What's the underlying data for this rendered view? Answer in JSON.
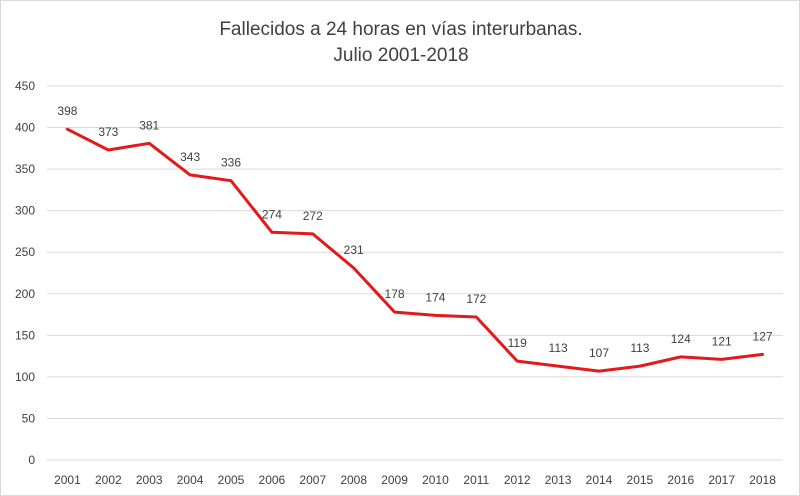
{
  "chart_data": {
    "type": "line",
    "title_lines": [
      "Fallecidos a 24 horas en vías interurbanas.",
      "Julio 2001-2018"
    ],
    "categories": [
      "2001",
      "2002",
      "2003",
      "2004",
      "2005",
      "2006",
      "2007",
      "2008",
      "2009",
      "2010",
      "2011",
      "2012",
      "2013",
      "2014",
      "2015",
      "2016",
      "2017",
      "2018"
    ],
    "series": [
      {
        "values": [
          398,
          373,
          381,
          343,
          336,
          274,
          272,
          231,
          178,
          174,
          172,
          119,
          113,
          107,
          113,
          124,
          121,
          127
        ],
        "color": "#e3191a"
      }
    ],
    "ylim": [
      0,
      450
    ],
    "yticks": [
      0,
      50,
      100,
      150,
      200,
      250,
      300,
      350,
      400,
      450
    ],
    "grid": true,
    "legend": "none",
    "data_labels": true
  }
}
